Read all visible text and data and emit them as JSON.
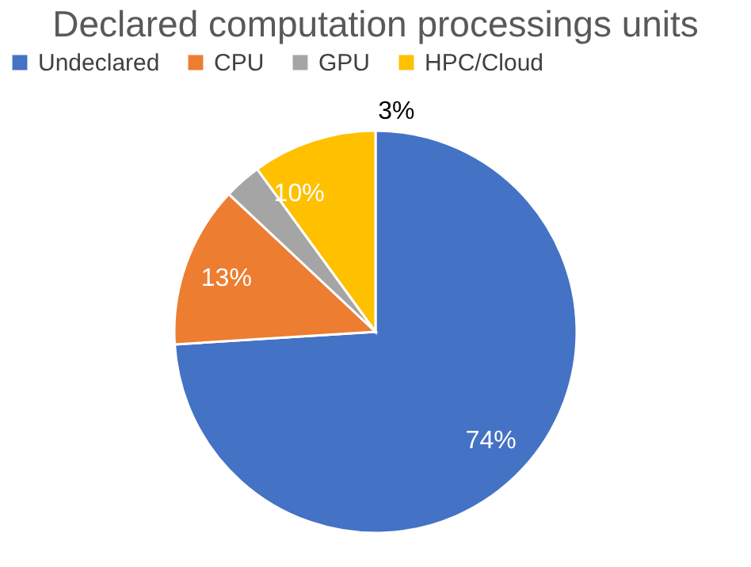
{
  "chart_data": {
    "type": "pie",
    "title": "Declared computation processings units",
    "categories": [
      "Undeclared",
      "CPU",
      "GPU",
      "HPC/Cloud"
    ],
    "values": [
      74,
      13,
      3,
      10
    ],
    "colors": [
      "#4472c4",
      "#ed7d31",
      "#a5a5a5",
      "#ffc000"
    ],
    "value_labels": [
      "74%",
      "13%",
      "3%",
      "10%"
    ],
    "legend": "top"
  }
}
